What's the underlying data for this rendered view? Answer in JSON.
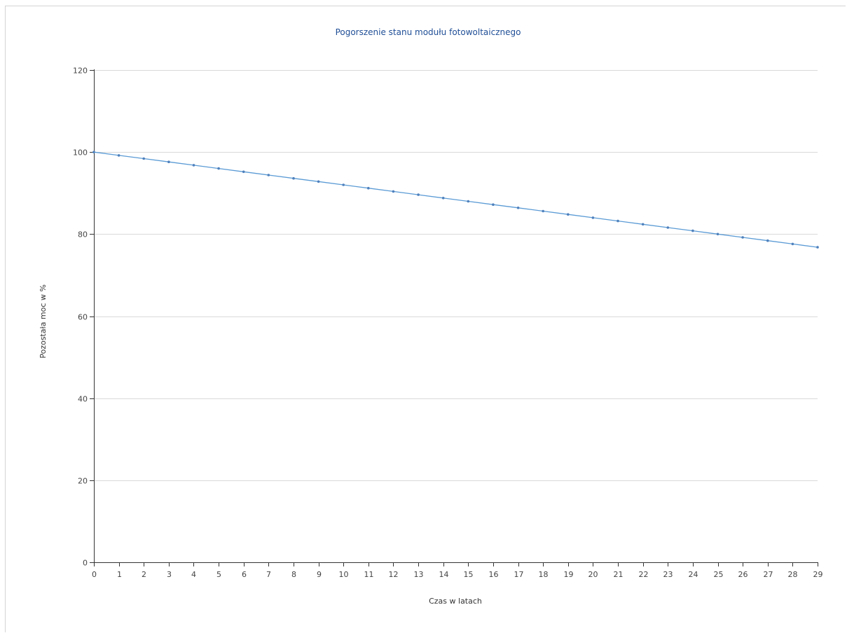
{
  "chart_data": {
    "type": "line",
    "title": "Pogorszenie stanu modułu fotowoltaicznego",
    "xlabel": "Czas w latach",
    "ylabel": "Pozostała moc w %",
    "xlim": [
      0,
      29
    ],
    "ylim": [
      0,
      120
    ],
    "x_ticks": [
      0,
      1,
      2,
      3,
      4,
      5,
      6,
      7,
      8,
      9,
      10,
      11,
      12,
      13,
      14,
      15,
      16,
      17,
      18,
      19,
      20,
      21,
      22,
      23,
      24,
      25,
      26,
      27,
      28,
      29
    ],
    "y_ticks": [
      0,
      20,
      40,
      60,
      80,
      100,
      120
    ],
    "grid": "horizontal",
    "line_color": "#5b9bd5",
    "marker_color": "#4f81bd",
    "series": [
      {
        "x": [
          0,
          1,
          2,
          3,
          4,
          5,
          6,
          7,
          8,
          9,
          10,
          11,
          12,
          13,
          14,
          15,
          16,
          17,
          18,
          19,
          20,
          21,
          22,
          23,
          24,
          25,
          26,
          27,
          28,
          29
        ],
        "values": [
          100,
          99.2,
          98.4,
          97.6,
          96.8,
          96.0,
          95.2,
          94.4,
          93.6,
          92.8,
          92.0,
          91.2,
          90.4,
          89.6,
          88.8,
          88.0,
          87.2,
          86.4,
          85.6,
          84.8,
          84.0,
          83.2,
          82.4,
          81.6,
          80.8,
          80.0,
          79.2,
          78.4,
          77.6,
          76.8
        ]
      }
    ]
  }
}
